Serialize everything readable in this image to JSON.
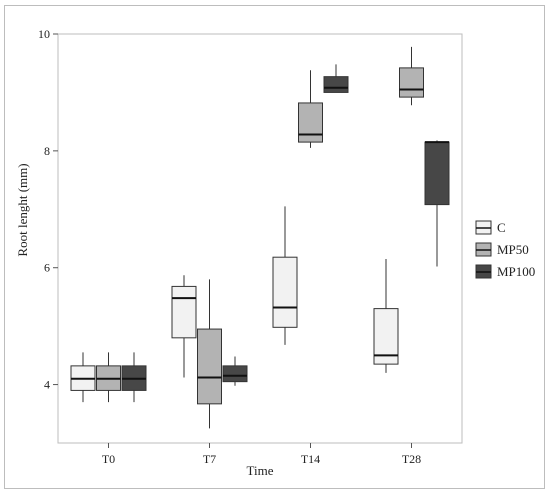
{
  "chart_data": {
    "type": "boxplot",
    "title": "",
    "xlabel": "Time",
    "ylabel": "Root lenght (mm)",
    "ylim": [
      3.0,
      10.0
    ],
    "yticks": [
      4,
      6,
      8,
      10
    ],
    "categories": [
      "T0",
      "T7",
      "T14",
      "T28"
    ],
    "grid": false,
    "legend_position": "right",
    "series": [
      {
        "name": "C",
        "color": "#f2f2f2",
        "boxes": [
          {
            "min": 3.7,
            "q1": 3.9,
            "median": 4.1,
            "q3": 4.32,
            "max": 4.55
          },
          {
            "min": 4.12,
            "q1": 4.8,
            "median": 5.48,
            "q3": 5.68,
            "max": 5.87
          },
          {
            "min": 4.68,
            "q1": 4.98,
            "median": 5.32,
            "q3": 6.18,
            "max": 7.05
          },
          {
            "min": 4.2,
            "q1": 4.35,
            "median": 4.5,
            "q3": 5.3,
            "max": 6.15
          }
        ]
      },
      {
        "name": "MP50",
        "color": "#b3b3b3",
        "boxes": [
          {
            "min": 3.7,
            "q1": 3.9,
            "median": 4.1,
            "q3": 4.32,
            "max": 4.55
          },
          {
            "min": 3.25,
            "q1": 3.67,
            "median": 4.12,
            "q3": 4.95,
            "max": 5.8
          },
          {
            "min": 8.05,
            "q1": 8.15,
            "median": 8.28,
            "q3": 8.82,
            "max": 9.38
          },
          {
            "min": 8.78,
            "q1": 8.92,
            "median": 9.05,
            "q3": 9.42,
            "max": 9.78
          }
        ]
      },
      {
        "name": "MP100",
        "color": "#474747",
        "boxes": [
          {
            "min": 3.7,
            "q1": 3.9,
            "median": 4.1,
            "q3": 4.32,
            "max": 4.55
          },
          {
            "min": 3.98,
            "q1": 4.05,
            "median": 4.15,
            "q3": 4.32,
            "max": 4.48
          },
          {
            "min": 9.0,
            "q1": 9.0,
            "median": 9.08,
            "q3": 9.27,
            "max": 9.48
          },
          {
            "min": 6.02,
            "q1": 7.08,
            "median": 8.15,
            "q3": 8.15,
            "max": 8.18
          }
        ]
      }
    ]
  }
}
